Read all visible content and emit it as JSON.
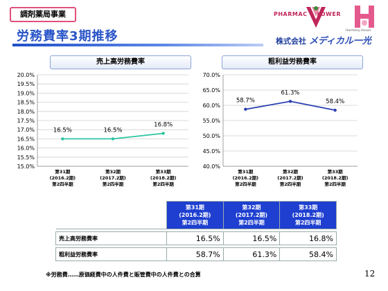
{
  "header": {
    "section_tag": "調剤薬局事業",
    "title": "労務費率3期推移"
  },
  "logos": {
    "pharmac": "PHARMAC",
    "lower": "LOWER",
    "harmony": "Harmony House",
    "company_prefix": "株式会社",
    "company_brand": "メディカル一光"
  },
  "colors": {
    "line_left": "#2cc4a0",
    "line_right": "#2a3fb0",
    "header_blue": "#1e3fd0",
    "title_blue": "#2a55c8"
  },
  "chart_data": [
    {
      "type": "line",
      "title": "売上高労務費率",
      "categories": [
        [
          "第31期",
          "(2016.2期)",
          "第2四半期"
        ],
        [
          "第32期",
          "(2017.2期)",
          "第2四半期"
        ],
        [
          "第33期",
          "(2018.2期)",
          "第2四半期"
        ]
      ],
      "values": [
        16.5,
        16.5,
        16.8
      ],
      "data_labels": [
        "16.5%",
        "16.5%",
        "16.8%"
      ],
      "ylim": [
        15.0,
        20.0
      ],
      "yticks": [
        15.0,
        15.5,
        16.0,
        16.5,
        17.0,
        17.5,
        18.0,
        18.5,
        19.0,
        19.5,
        20.0
      ],
      "ytick_labels": [
        "15.0%",
        "15.5%",
        "16.0%",
        "16.5%",
        "17.0%",
        "17.5%",
        "18.0%",
        "18.5%",
        "19.0%",
        "19.5%",
        "20.0%"
      ],
      "grid": true,
      "legend": "none"
    },
    {
      "type": "line",
      "title": "粗利益労務費率",
      "categories": [
        [
          "第31期",
          "(2016.2期)",
          "第2四半期"
        ],
        [
          "第32期",
          "(2017.2期)",
          "第2四半期"
        ],
        [
          "第33期",
          "(2018.2期)",
          "第2四半期"
        ]
      ],
      "values": [
        58.7,
        61.3,
        58.4
      ],
      "data_labels": [
        "58.7%",
        "61.3%",
        "58.4%"
      ],
      "ylim": [
        40.0,
        70.0
      ],
      "yticks": [
        40.0,
        45.0,
        50.0,
        55.0,
        60.0,
        65.0,
        70.0
      ],
      "ytick_labels": [
        "40.0%",
        "45.0%",
        "50.0%",
        "55.0%",
        "60.0%",
        "65.0%",
        "70.0%"
      ],
      "grid": true,
      "legend": "none"
    },
    {
      "type": "table",
      "columns": [
        [
          "第31期",
          "(2016.2期)",
          "第2四半期"
        ],
        [
          "第32期",
          "(2017.2期)",
          "第2四半期"
        ],
        [
          "第33期",
          "(2018.2期)",
          "第2四半期"
        ]
      ],
      "rows": [
        {
          "label": "売上高労務費率",
          "values": [
            "16.5%",
            "16.5%",
            "16.8%"
          ]
        },
        {
          "label": "粗利益労務費率",
          "values": [
            "58.7%",
            "61.3%",
            "58.4%"
          ]
        }
      ]
    }
  ],
  "footnote": "※労務費……原価経費中の人件費と販管費中の人件費との合算",
  "page_number": "12"
}
